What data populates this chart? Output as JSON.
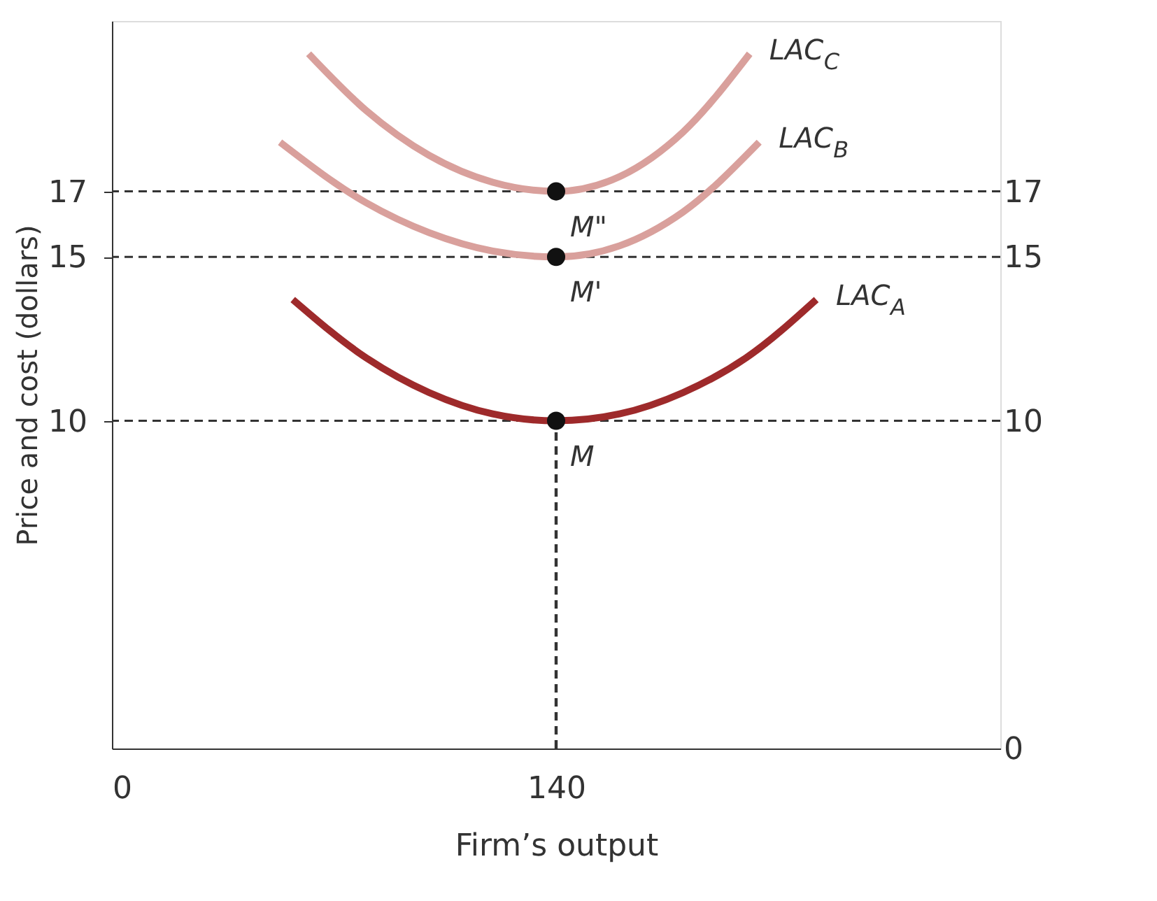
{
  "chart_data": {
    "type": "line",
    "xlabel": "Firm’s output",
    "ylabel": "Price and cost (dollars)",
    "xlim": [
      0,
      280
    ],
    "xticks": [
      0,
      140
    ],
    "ylim": [
      0,
      22.2
    ],
    "yticks": [
      10,
      15,
      17
    ],
    "y2lim": [
      0,
      22.2
    ],
    "y2ticks": [
      0,
      10,
      15,
      17
    ],
    "grid": false,
    "series": [
      {
        "name": "LAC$_{C}$",
        "color": "#d9a09c",
        "x": [
          62,
          80,
          100,
          120,
          140,
          160,
          180,
          201
        ],
        "values": [
          21.2,
          19.48,
          18.1,
          17.28,
          17,
          17.45,
          18.81,
          21.2
        ]
      },
      {
        "name": "LAC$_{B}$",
        "color": "#d9a09c",
        "x": [
          53,
          80,
          100,
          120,
          140,
          160,
          180,
          204
        ],
        "values": [
          18.5,
          16.66,
          15.74,
          15.18,
          15,
          15.34,
          16.37,
          18.5
        ]
      },
      {
        "name": "LAC$_{A}$",
        "color": "#9e2a2b",
        "x": [
          57,
          80,
          100,
          120,
          140,
          160,
          180,
          200,
          222
        ],
        "values": [
          13.7,
          11.93,
          10.86,
          10.21,
          10,
          10.21,
          10.86,
          11.93,
          13.7
        ]
      },
      {
        "type": "line",
        "line_style": "dashed",
        "color": "#333333",
        "x": [
          140,
          140
        ],
        "values": [
          0,
          10
        ]
      },
      {
        "type": "scatter",
        "color": "#111111",
        "x": [
          140,
          140,
          140
        ],
        "values": [
          10,
          15,
          17
        ],
        "value_labels": [
          "M",
          "M'",
          "M\""
        ]
      }
    ],
    "ref_lines": [
      {
        "axis": "y",
        "value": 17,
        "line_style": "dashed",
        "color": "#333333"
      },
      {
        "axis": "y",
        "value": 15,
        "line_style": "dashed",
        "color": "#333333"
      },
      {
        "axis": "y",
        "value": 10,
        "line_style": "dashed",
        "color": "#333333"
      }
    ]
  }
}
